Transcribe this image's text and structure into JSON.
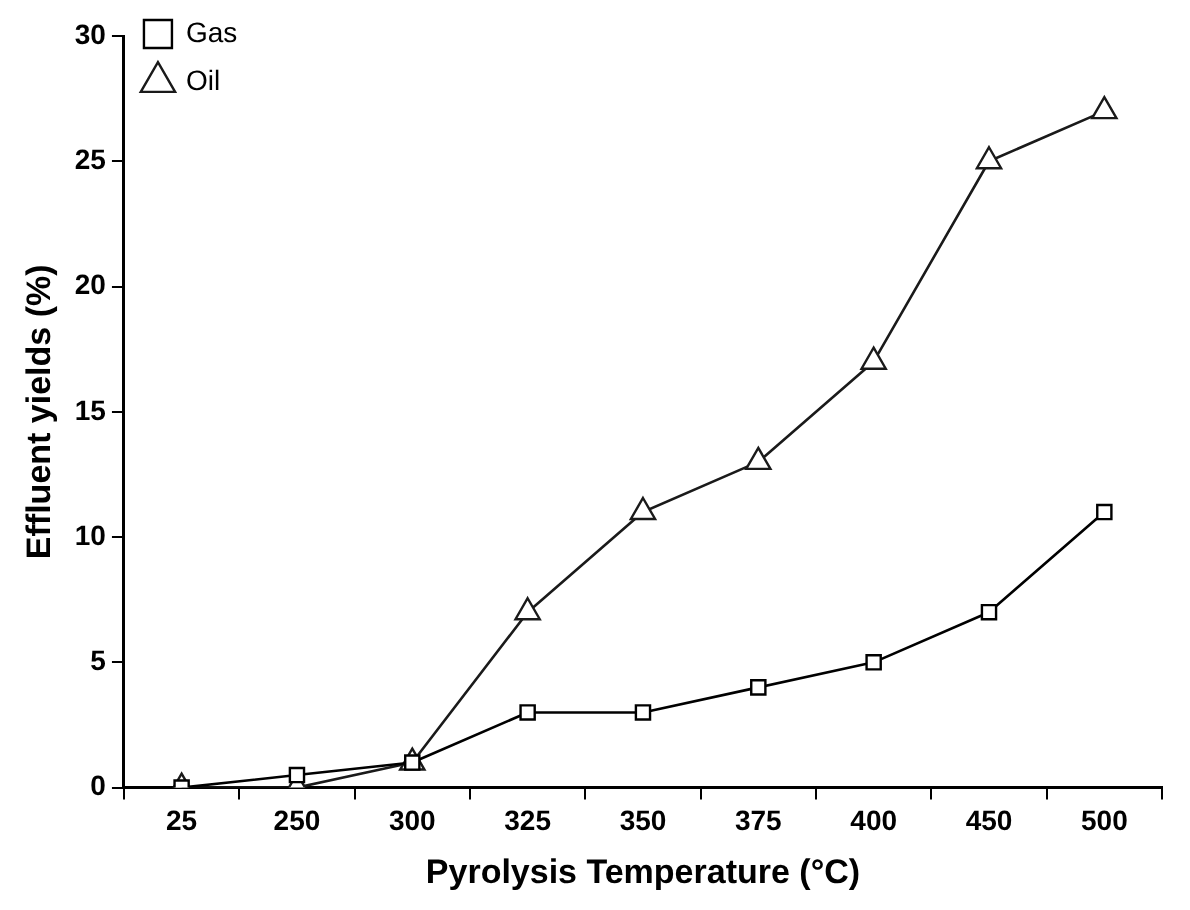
{
  "chart_data": {
    "type": "line",
    "xlabel": "Pyrolysis Temperature (°C)",
    "ylabel": "Effluent yields (%)",
    "categories": [
      "25",
      "250",
      "300",
      "325",
      "350",
      "375",
      "400",
      "450",
      "500"
    ],
    "series": [
      {
        "name": "Gas",
        "color": "#000000",
        "marker": "square",
        "values": [
          0,
          0.5,
          1,
          3,
          3,
          4,
          5,
          7,
          11
        ]
      },
      {
        "name": "Oil",
        "color": "#1a1a1a",
        "marker": "triangle",
        "values": [
          0,
          0,
          1,
          7,
          11,
          13,
          17,
          25,
          27
        ]
      }
    ],
    "ylim": [
      0,
      30
    ],
    "yticks": [
      0,
      5,
      10,
      15,
      20,
      25,
      30
    ],
    "grid": false,
    "legend": "top left",
    "line_style": "solid"
  }
}
